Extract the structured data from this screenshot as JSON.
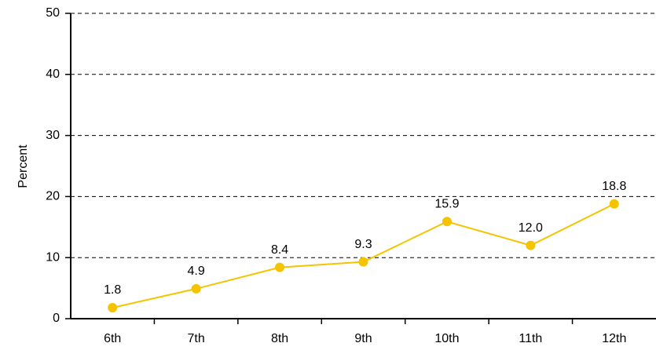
{
  "chart_data": {
    "type": "line",
    "y_label": "Percent",
    "categories": [
      "6th",
      "7th",
      "8th",
      "9th",
      "10th",
      "11th",
      "12th"
    ],
    "values": [
      1.8,
      4.9,
      8.4,
      9.3,
      15.9,
      12.0,
      18.8
    ],
    "value_labels": [
      "1.8",
      "4.9",
      "8.4",
      "9.3",
      "15.9",
      "12.0",
      "18.8"
    ],
    "color": "#f5c400",
    "ylim": [
      0,
      50
    ],
    "yticks": [
      0,
      10,
      20,
      30,
      40,
      50
    ],
    "grid": true
  }
}
